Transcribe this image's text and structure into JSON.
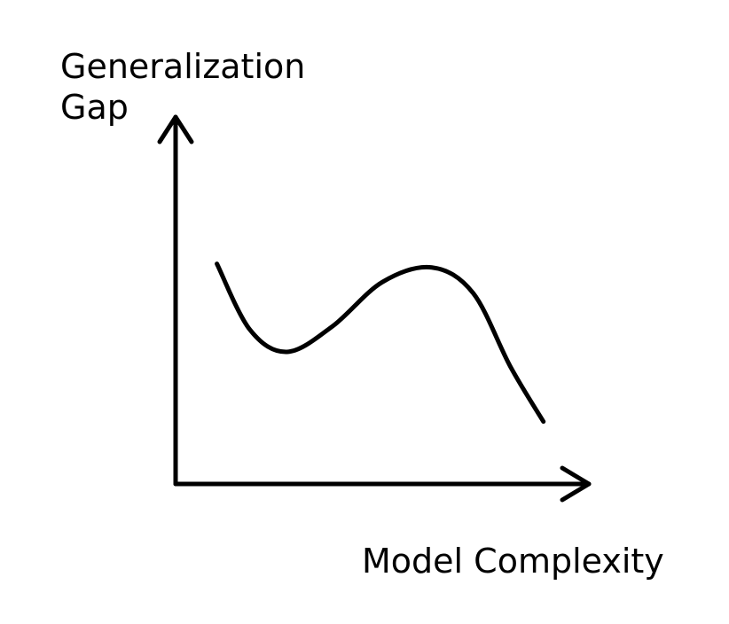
{
  "chart_data": {
    "type": "line",
    "ylabel_lines": [
      "Generalization",
      "Gap"
    ],
    "xlabel": "Model Complexity",
    "grid": false,
    "legend": "none",
    "axis_ticks": false,
    "series": [
      {
        "x": [
          0.1,
          0.18,
          0.27,
          0.38,
          0.5,
          0.62,
          0.72,
          0.81,
          0.89
        ],
        "y": [
          0.6,
          0.42,
          0.36,
          0.43,
          0.55,
          0.59,
          0.52,
          0.32,
          0.17
        ]
      }
    ],
    "xlim": [
      0,
      1
    ],
    "ylim": [
      0,
      1
    ],
    "line_color": "#000000"
  }
}
